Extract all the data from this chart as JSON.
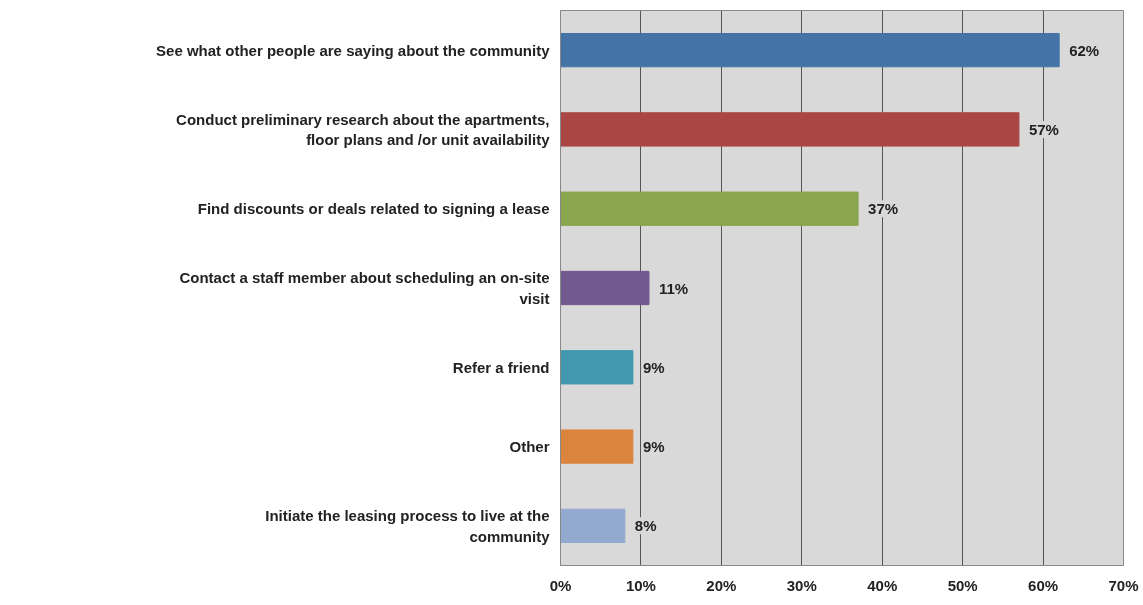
{
  "chart_data": {
    "type": "bar",
    "orientation": "horizontal",
    "categories": [
      "See what other people are saying about the community",
      "Conduct preliminary research about the apartments, floor plans and /or unit availability",
      "Find discounts or deals related to signing a lease",
      "Contact a staff member about scheduling an on-site visit",
      "Refer a friend",
      "Other",
      "Initiate the leasing process to live at the community"
    ],
    "values": [
      62,
      57,
      37,
      11,
      9,
      9,
      8
    ],
    "colors": [
      "#4572a7",
      "#aa4643",
      "#89a54e",
      "#71588f",
      "#4198af",
      "#db843d",
      "#93a9cf"
    ],
    "value_labels": [
      "62%",
      "57%",
      "37%",
      "11%",
      "9%",
      "9%",
      "8%"
    ],
    "xlim": [
      0,
      70
    ],
    "xticks": [
      {
        "value": 0,
        "label": "0%"
      },
      {
        "value": 10,
        "label": "10%"
      },
      {
        "value": 20,
        "label": "20%"
      },
      {
        "value": 30,
        "label": "30%"
      },
      {
        "value": 40,
        "label": "40%"
      },
      {
        "value": 50,
        "label": "50%"
      },
      {
        "value": 60,
        "label": "60%"
      },
      {
        "value": 70,
        "label": "70%"
      }
    ],
    "grid": "x"
  }
}
